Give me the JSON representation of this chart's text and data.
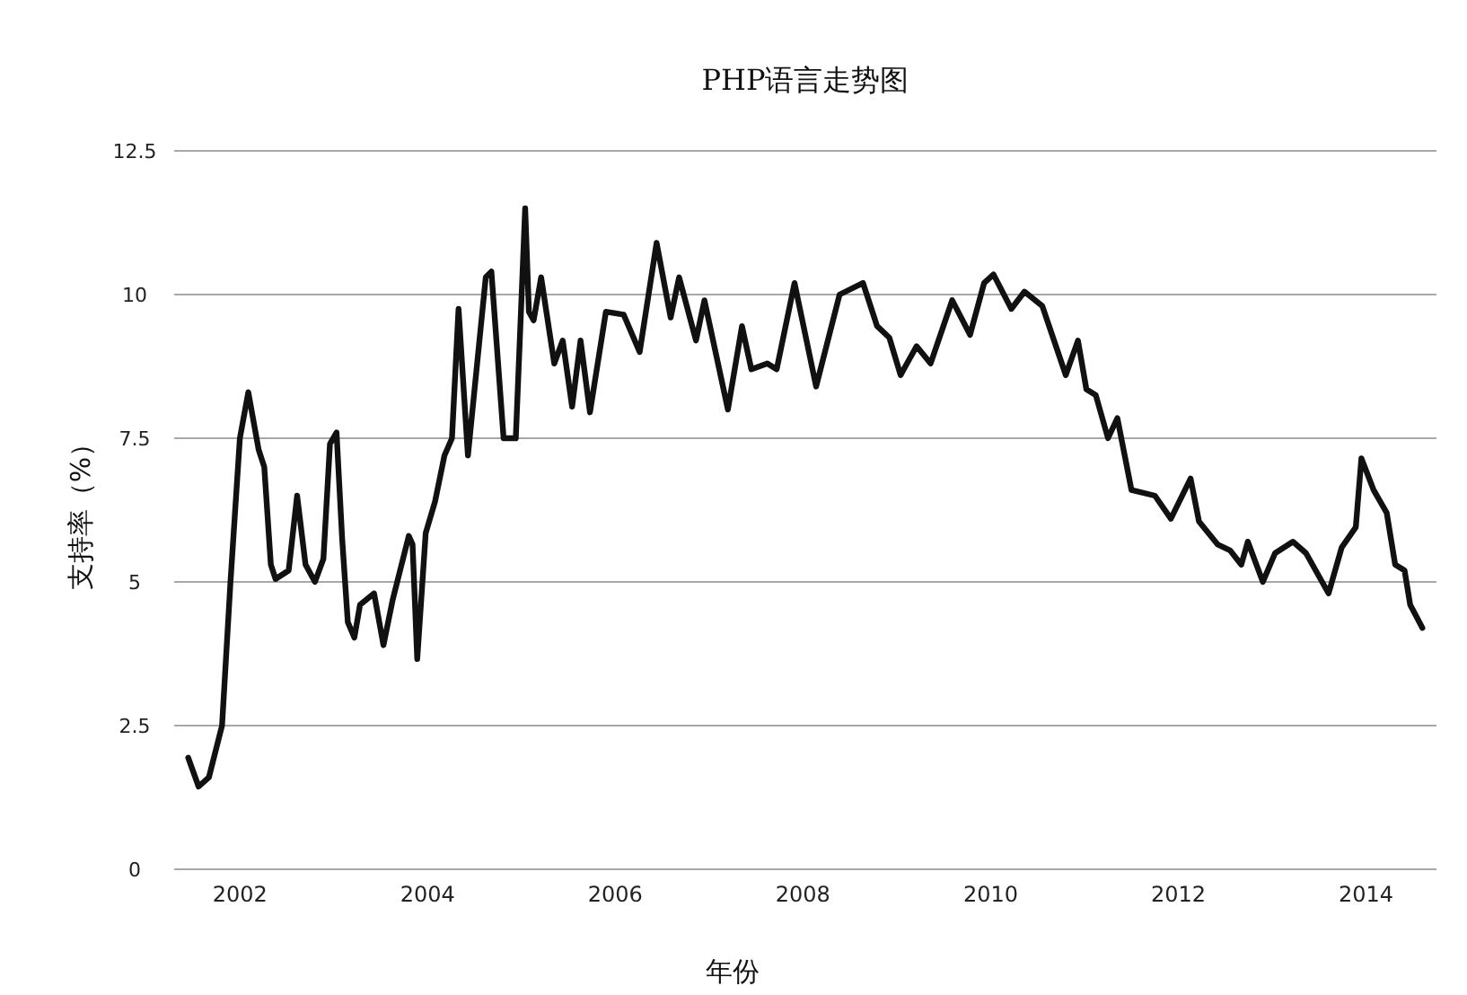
{
  "chart_data": {
    "type": "line",
    "title": "PHP语言走势图",
    "xlabel": "年份",
    "ylabel": "支持率（%）",
    "xlim": [
      2001.3,
      2014.75
    ],
    "xticks": [
      2002,
      2004,
      2006,
      2008,
      2010,
      2012,
      2014
    ],
    "ylim": [
      0,
      12.5
    ],
    "yticks": [
      0,
      2.5,
      5,
      7.5,
      10,
      12.5
    ],
    "grid": "y",
    "line_style": "solid",
    "marker": "none",
    "series": [
      {
        "color": "#111111",
        "x": [
          2001.45,
          2001.56,
          2001.67,
          2001.81,
          2001.9,
          2002.0,
          2002.09,
          2002.2,
          2002.26,
          2002.33,
          2002.38,
          2002.52,
          2002.61,
          2002.7,
          2002.8,
          2002.89,
          2002.96,
          2003.03,
          2003.09,
          2003.15,
          2003.22,
          2003.28,
          2003.43,
          2003.53,
          2003.63,
          2003.8,
          2003.84,
          2003.89,
          2003.98,
          2004.08,
          2004.18,
          2004.26,
          2004.33,
          2004.43,
          2004.62,
          2004.68,
          2004.81,
          2004.94,
          2005.04,
          2005.08,
          2005.13,
          2005.21,
          2005.35,
          2005.44,
          2005.54,
          2005.63,
          2005.73,
          2005.9,
          2006.09,
          2006.26,
          2006.44,
          2006.59,
          2006.68,
          2006.86,
          2006.95,
          2007.2,
          2007.35,
          2007.45,
          2007.62,
          2007.72,
          2007.91,
          2008.14,
          2008.39,
          2008.64,
          2008.79,
          2008.92,
          2009.04,
          2009.21,
          2009.36,
          2009.59,
          2009.78,
          2009.93,
          2010.03,
          2010.22,
          2010.36,
          2010.55,
          2010.8,
          2010.93,
          2011.02,
          2011.12,
          2011.25,
          2011.35,
          2011.5,
          2011.75,
          2011.92,
          2012.13,
          2012.22,
          2012.42,
          2012.55,
          2012.67,
          2012.74,
          2012.9,
          2013.03,
          2013.22,
          2013.36,
          2013.6,
          2013.74,
          2013.89,
          2013.95,
          2014.08,
          2014.22,
          2014.31,
          2014.41,
          2014.47,
          2014.6
        ],
        "values": [
          1.94,
          1.44,
          1.6,
          2.5,
          5.0,
          7.5,
          8.3,
          7.3,
          7.0,
          5.3,
          5.05,
          5.2,
          6.5,
          5.3,
          5.0,
          5.4,
          7.4,
          7.6,
          5.75,
          4.3,
          4.03,
          4.6,
          4.8,
          3.9,
          4.7,
          5.8,
          5.65,
          3.66,
          5.85,
          6.4,
          7.2,
          7.5,
          9.75,
          7.2,
          10.3,
          10.4,
          7.5,
          7.5,
          11.5,
          9.7,
          9.55,
          10.3,
          8.8,
          9.2,
          8.05,
          9.2,
          7.95,
          9.7,
          9.65,
          9.0,
          10.9,
          9.6,
          10.3,
          9.2,
          9.9,
          8.0,
          9.45,
          8.7,
          8.8,
          8.7,
          10.2,
          8.4,
          10.0,
          10.2,
          9.45,
          9.25,
          8.6,
          9.1,
          8.8,
          9.9,
          9.3,
          10.2,
          10.35,
          9.75,
          10.05,
          9.8,
          8.6,
          9.2,
          8.35,
          8.25,
          7.5,
          7.85,
          6.6,
          6.5,
          6.1,
          6.8,
          6.05,
          5.65,
          5.55,
          5.3,
          5.7,
          5.0,
          5.5,
          5.7,
          5.5,
          4.8,
          5.6,
          5.95,
          7.15,
          6.6,
          6.2,
          5.3,
          5.2,
          4.6,
          4.2
        ]
      }
    ]
  }
}
